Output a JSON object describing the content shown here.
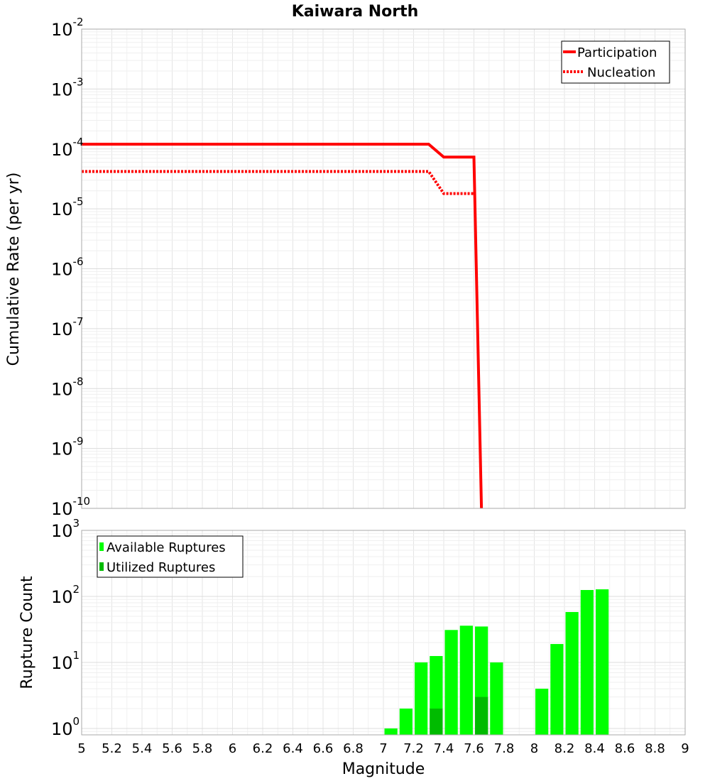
{
  "chart_data": [
    {
      "type": "line",
      "title": "Kaiwara North",
      "xlabel": "Magnitude",
      "ylabel": "Cumulative Rate (per yr)",
      "xlim": [
        5,
        9
      ],
      "ylim": [
        1e-10,
        0.01
      ],
      "yscale": "log",
      "grid": true,
      "legend_position": "top-right",
      "ytick_labels": [
        {
          "base": "10",
          "exp": "-10"
        },
        {
          "base": "10",
          "exp": "-9"
        },
        {
          "base": "10",
          "exp": "-8"
        },
        {
          "base": "10",
          "exp": "-7"
        },
        {
          "base": "10",
          "exp": "-6"
        },
        {
          "base": "10",
          "exp": "-5"
        },
        {
          "base": "10",
          "exp": "-4"
        },
        {
          "base": "10",
          "exp": "-3"
        },
        {
          "base": "10",
          "exp": "-2"
        }
      ],
      "series": [
        {
          "name": "Participation",
          "color": "#ff0000",
          "style": "solid",
          "x": [
            5.0,
            7.3,
            7.4,
            7.6,
            7.65
          ],
          "y": [
            0.00012,
            0.00012,
            7.3e-05,
            7.3e-05,
            1e-10
          ]
        },
        {
          "name": "Nucleation",
          "color": "#ff0000",
          "style": "dotted",
          "x": [
            5.0,
            7.3,
            7.4,
            7.6
          ],
          "y": [
            4.2e-05,
            4.2e-05,
            1.8e-05,
            1.8e-05
          ]
        }
      ]
    },
    {
      "type": "bar",
      "xlabel": "Magnitude",
      "ylabel": "Rupture Count",
      "xlim": [
        5,
        9
      ],
      "ylim": [
        0.8,
        1000
      ],
      "yscale": "log",
      "grid": true,
      "legend_position": "top-left",
      "ytick_labels": [
        {
          "base": "10",
          "exp": "0"
        },
        {
          "base": "10",
          "exp": "1"
        },
        {
          "base": "10",
          "exp": "2"
        },
        {
          "base": "10",
          "exp": "3"
        }
      ],
      "bin_width": 0.1,
      "series": [
        {
          "name": "Available Ruptures",
          "color": "#00ff00",
          "x": [
            7.05,
            7.15,
            7.25,
            7.35,
            7.45,
            7.55,
            7.65,
            7.75,
            8.05,
            8.15,
            8.25,
            8.35,
            8.45
          ],
          "values": [
            1,
            2,
            10,
            12.5,
            31,
            36,
            35,
            10,
            4,
            19,
            58,
            125,
            128
          ]
        },
        {
          "name": "Utilized Ruptures",
          "color": "#00bb00",
          "x": [
            7.35,
            7.65
          ],
          "values": [
            2,
            3
          ]
        }
      ]
    }
  ],
  "xtick_labels": [
    "5",
    "5.2",
    "5.4",
    "5.6",
    "5.8",
    "6",
    "6.2",
    "6.4",
    "6.6",
    "6.8",
    "7",
    "7.2",
    "7.4",
    "7.6",
    "7.8",
    "8",
    "8.2",
    "8.4",
    "8.6",
    "8.8",
    "9"
  ]
}
